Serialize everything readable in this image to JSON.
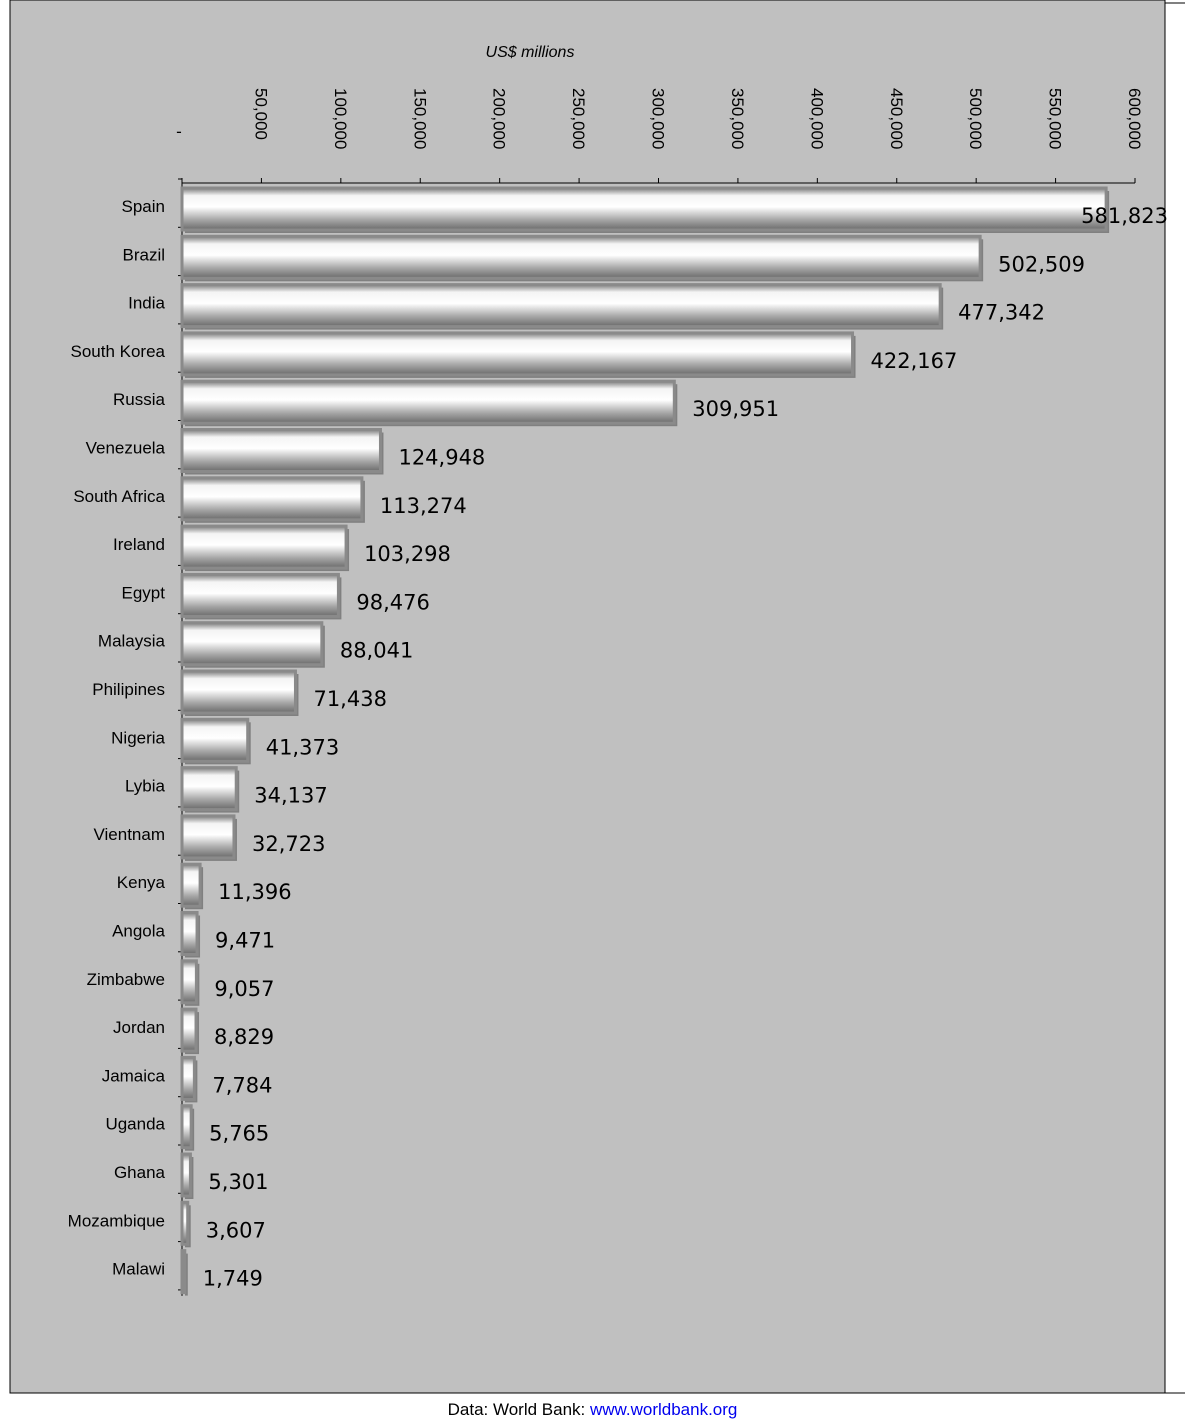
{
  "chart_data": {
    "type": "bar",
    "orientation": "horizontal",
    "title": "",
    "xlabel": "US$ millions",
    "ylabel": "",
    "xlim": [
      0,
      600000
    ],
    "x_ticks": [
      "-",
      "50,000",
      "100,000",
      "150,000",
      "200,000",
      "250,000",
      "300,000",
      "350,000",
      "400,000",
      "450,000",
      "500,000",
      "550,000",
      "600,000"
    ],
    "x_tick_values": [
      0,
      50000,
      100000,
      150000,
      200000,
      250000,
      300000,
      350000,
      400000,
      450000,
      500000,
      550000,
      600000
    ],
    "categories": [
      "Spain",
      "Brazil",
      "India",
      "South Korea",
      "Russia",
      "Venezuela",
      "South Africa",
      "Ireland",
      "Egypt",
      "Malaysia",
      "Philipines",
      "Nigeria",
      "Lybia",
      "Vientnam",
      "Kenya",
      "Angola",
      "Zimbabwe",
      "Jordan",
      "Jamaica",
      "Uganda",
      "Ghana",
      "Mozambique",
      "Malawi"
    ],
    "values": [
      581823,
      502509,
      477342,
      422167,
      309951,
      124948,
      113274,
      103298,
      98476,
      88041,
      71438,
      41373,
      34137,
      32723,
      11396,
      9471,
      9057,
      8829,
      7784,
      5765,
      5301,
      3607,
      1749
    ],
    "value_labels": [
      "581,823",
      "502,509",
      "477,342",
      "422,167",
      "309,951",
      "124,948",
      "113,274",
      "103,298",
      "98,476",
      "88,041",
      "71,438",
      "41,373",
      "34,137",
      "32,723",
      "11,396",
      "9,471",
      "9,057",
      "8,829",
      "7,784",
      "5,765",
      "5,301",
      "3,607",
      "1,749"
    ],
    "grid": false,
    "legend": "none",
    "colors": {
      "plot_background": "#c0c0c0",
      "bar_light": "#ffffff",
      "bar_dark": "#6e6e6e",
      "bar_border": "#8a8a8a"
    }
  },
  "footer": {
    "prefix": "Data: World Bank: ",
    "link_text": "www.worldbank.org"
  }
}
